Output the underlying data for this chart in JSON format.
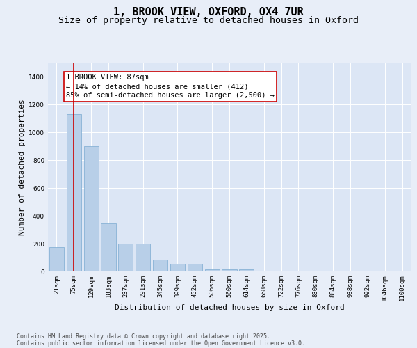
{
  "title_line1": "1, BROOK VIEW, OXFORD, OX4 7UR",
  "title_line2": "Size of property relative to detached houses in Oxford",
  "xlabel": "Distribution of detached houses by size in Oxford",
  "ylabel": "Number of detached properties",
  "categories": [
    "21sqm",
    "75sqm",
    "129sqm",
    "183sqm",
    "237sqm",
    "291sqm",
    "345sqm",
    "399sqm",
    "452sqm",
    "506sqm",
    "560sqm",
    "614sqm",
    "668sqm",
    "722sqm",
    "776sqm",
    "830sqm",
    "884sqm",
    "938sqm",
    "992sqm",
    "1046sqm",
    "1100sqm"
  ],
  "values": [
    175,
    1130,
    900,
    345,
    200,
    200,
    85,
    55,
    55,
    15,
    15,
    15,
    0,
    0,
    0,
    0,
    0,
    0,
    0,
    0,
    0
  ],
  "bar_color": "#b8cfe8",
  "bar_edge_color": "#7aaad0",
  "vline_color": "#cc0000",
  "vline_pos": 1.0,
  "annotation_text": "1 BROOK VIEW: 87sqm\n← 14% of detached houses are smaller (412)\n85% of semi-detached houses are larger (2,500) →",
  "annotation_box_color": "#ffffff",
  "annotation_box_edge_color": "#cc0000",
  "ylim": [
    0,
    1500
  ],
  "yticks": [
    0,
    200,
    400,
    600,
    800,
    1000,
    1200,
    1400
  ],
  "bg_color": "#e8eef8",
  "plot_bg_color": "#dce6f5",
  "grid_color": "#ffffff",
  "footer_line1": "Contains HM Land Registry data © Crown copyright and database right 2025.",
  "footer_line2": "Contains public sector information licensed under the Open Government Licence v3.0.",
  "title_fontsize": 11,
  "subtitle_fontsize": 9.5,
  "axis_label_fontsize": 8,
  "tick_fontsize": 6.5,
  "annotation_fontsize": 7.5,
  "footer_fontsize": 6
}
